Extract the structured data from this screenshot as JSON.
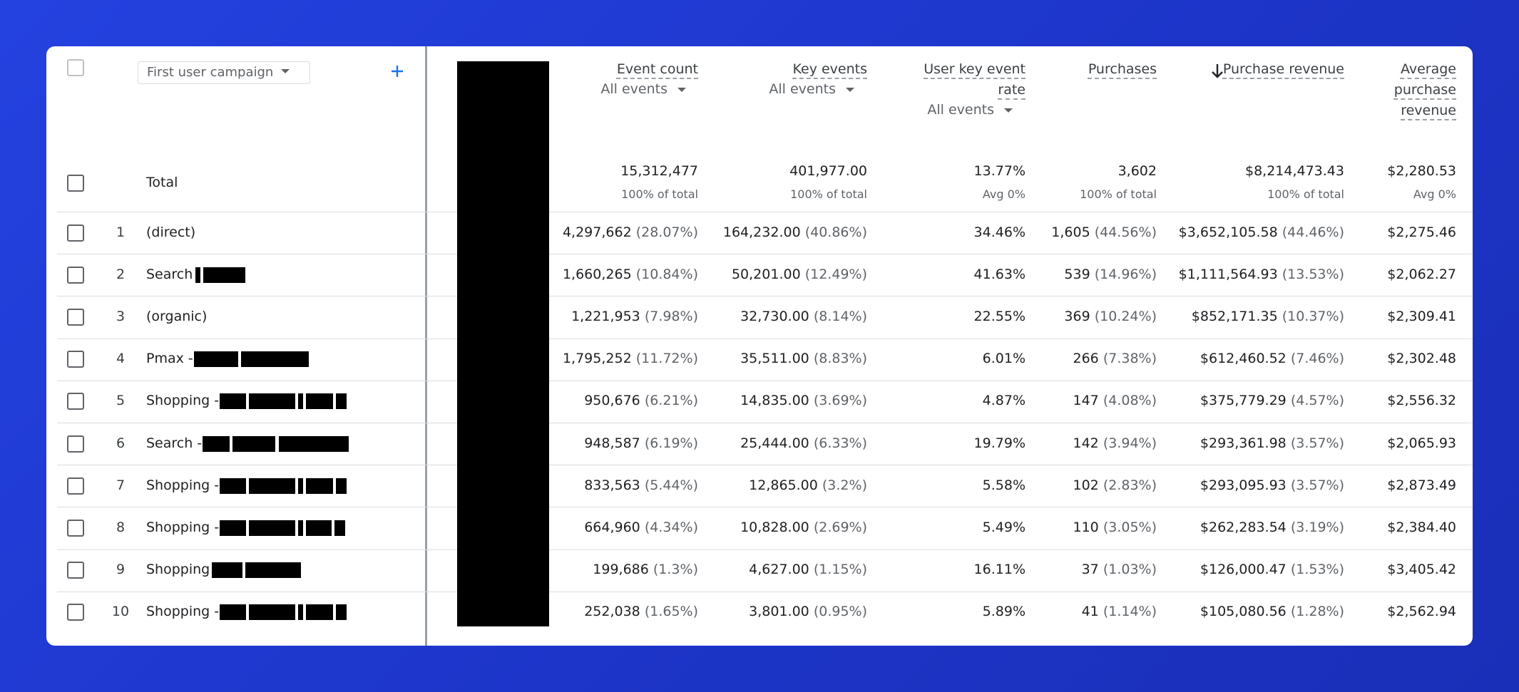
{
  "header": {
    "dimension": "First user campaign"
  },
  "columns": [
    {
      "title": "Event count",
      "filter": "All events"
    },
    {
      "title": "Key events",
      "filter": "All events"
    },
    {
      "title": "User key event rate",
      "filter": "All events"
    },
    {
      "title": "Purchases"
    },
    {
      "title": "Purchase revenue"
    },
    {
      "title": "Average purchase revenue"
    }
  ],
  "totals": {
    "label": "Total",
    "cells": [
      {
        "value": "15,312,477",
        "note": "100% of total"
      },
      {
        "value": "401,977.00",
        "note": "100% of total"
      },
      {
        "value": "13.77%",
        "note": "Avg 0%"
      },
      {
        "value": "3,602",
        "note": "100% of total"
      },
      {
        "value": "$8,214,473.43",
        "note": "100% of total"
      },
      {
        "value": "$2,280.53",
        "note": "Avg 0%"
      }
    ]
  },
  "rows": [
    {
      "index": "1",
      "campaign": "(direct)",
      "cells": [
        [
          "4,297,662",
          "(28.07%)"
        ],
        [
          "164,232.00",
          "(40.86%)"
        ],
        [
          "34.46%"
        ],
        [
          "1,605",
          "(44.56%)"
        ],
        [
          "$3,652,105.58",
          "(44.46%)"
        ],
        [
          "$2,275.46"
        ]
      ]
    },
    {
      "index": "2",
      "campaign": "Search",
      "cells": [
        [
          "1,660,265",
          "(10.84%)"
        ],
        [
          "50,201.00",
          "(12.49%)"
        ],
        [
          "41.63%"
        ],
        [
          "539",
          "(14.96%)"
        ],
        [
          "$1,111,564.93",
          "(13.53%)"
        ],
        [
          "$2,062.27"
        ]
      ]
    },
    {
      "index": "3",
      "campaign": "(organic)",
      "cells": [
        [
          "1,221,953",
          "(7.98%)"
        ],
        [
          "32,730.00",
          "(8.14%)"
        ],
        [
          "22.55%"
        ],
        [
          "369",
          "(10.24%)"
        ],
        [
          "$852,171.35",
          "(10.37%)"
        ],
        [
          "$2,309.41"
        ]
      ]
    },
    {
      "index": "4",
      "campaign": "Pmax -",
      "cells": [
        [
          "1,795,252",
          "(11.72%)"
        ],
        [
          "35,511.00",
          "(8.83%)"
        ],
        [
          "6.01%"
        ],
        [
          "266",
          "(7.38%)"
        ],
        [
          "$612,460.52",
          "(7.46%)"
        ],
        [
          "$2,302.48"
        ]
      ]
    },
    {
      "index": "5",
      "campaign": "Shopping -",
      "cells": [
        [
          "950,676",
          "(6.21%)"
        ],
        [
          "14,835.00",
          "(3.69%)"
        ],
        [
          "4.87%"
        ],
        [
          "147",
          "(4.08%)"
        ],
        [
          "$375,779.29",
          "(4.57%)"
        ],
        [
          "$2,556.32"
        ]
      ]
    },
    {
      "index": "6",
      "campaign": "Search -",
      "cells": [
        [
          "948,587",
          "(6.19%)"
        ],
        [
          "25,444.00",
          "(6.33%)"
        ],
        [
          "19.79%"
        ],
        [
          "142",
          "(3.94%)"
        ],
        [
          "$293,361.98",
          "(3.57%)"
        ],
        [
          "$2,065.93"
        ]
      ]
    },
    {
      "index": "7",
      "campaign": "Shopping -",
      "cells": [
        [
          "833,563",
          "(5.44%)"
        ],
        [
          "12,865.00",
          "(3.2%)"
        ],
        [
          "5.58%"
        ],
        [
          "102",
          "(2.83%)"
        ],
        [
          "$293,095.93",
          "(3.57%)"
        ],
        [
          "$2,873.49"
        ]
      ]
    },
    {
      "index": "8",
      "campaign": "Shopping -",
      "cells": [
        [
          "664,960",
          "(4.34%)"
        ],
        [
          "10,828.00",
          "(2.69%)"
        ],
        [
          "5.49%"
        ],
        [
          "110",
          "(3.05%)"
        ],
        [
          "$262,283.54",
          "(3.19%)"
        ],
        [
          "$2,384.40"
        ]
      ]
    },
    {
      "index": "9",
      "campaign": "Shopping",
      "cells": [
        [
          "199,686",
          "(1.3%)"
        ],
        [
          "4,627.00",
          "(1.15%)"
        ],
        [
          "16.11%"
        ],
        [
          "37",
          "(1.03%)"
        ],
        [
          "$126,000.47",
          "(1.53%)"
        ],
        [
          "$3,405.42"
        ]
      ]
    },
    {
      "index": "10",
      "campaign": "Shopping -",
      "cells": [
        [
          "252,038",
          "(1.65%)"
        ],
        [
          "3,801.00",
          "(0.95%)"
        ],
        [
          "5.89%"
        ],
        [
          "41",
          "(1.14%)"
        ],
        [
          "$105,080.56",
          "(1.28%)"
        ],
        [
          "$2,562.94"
        ]
      ]
    }
  ]
}
